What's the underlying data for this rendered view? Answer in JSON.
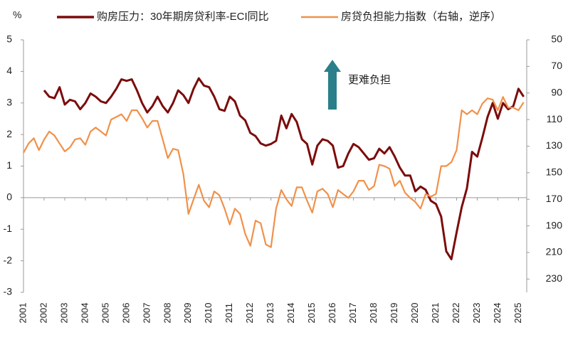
{
  "chart_data": {
    "type": "line",
    "y_unit": "%",
    "annotation": "更难负担",
    "xlim": [
      2001,
      2025.4
    ],
    "xticks": [
      2001,
      2002,
      2003,
      2004,
      2005,
      2006,
      2007,
      2008,
      2009,
      2010,
      2011,
      2012,
      2013,
      2014,
      2015,
      2016,
      2017,
      2018,
      2019,
      2020,
      2021,
      2022,
      2023,
      2024,
      2025
    ],
    "ylim": [
      -3,
      5
    ],
    "yticks": [
      -3,
      -2,
      -1,
      0,
      1,
      2,
      3,
      4,
      5
    ],
    "y2lim": [
      240,
      50
    ],
    "y2ticks": [
      50,
      70,
      90,
      110,
      130,
      150,
      170,
      190,
      210,
      230
    ],
    "series": [
      {
        "name": "购房压力：30年期房贷利率-ECI同比",
        "color": "#7b0c0c",
        "x": [
          2002,
          2002.25,
          2002.5,
          2002.75,
          2003,
          2003.25,
          2003.5,
          2003.75,
          2004,
          2004.25,
          2004.5,
          2004.75,
          2005,
          2005.25,
          2005.5,
          2005.75,
          2006,
          2006.25,
          2006.5,
          2006.75,
          2007,
          2007.25,
          2007.5,
          2007.75,
          2008,
          2008.25,
          2008.5,
          2008.75,
          2009,
          2009.25,
          2009.5,
          2009.75,
          2010,
          2010.25,
          2010.5,
          2010.75,
          2011,
          2011.25,
          2011.5,
          2011.75,
          2012,
          2012.25,
          2012.5,
          2012.75,
          2013,
          2013.25,
          2013.5,
          2013.75,
          2014,
          2014.25,
          2014.5,
          2014.75,
          2015,
          2015.25,
          2015.5,
          2015.75,
          2016,
          2016.25,
          2016.5,
          2016.75,
          2017,
          2017.25,
          2017.5,
          2017.75,
          2018,
          2018.25,
          2018.5,
          2018.75,
          2019,
          2019.25,
          2019.5,
          2019.75,
          2020,
          2020.25,
          2020.5,
          2020.75,
          2021,
          2021.25,
          2021.5,
          2021.75,
          2022,
          2022.25,
          2022.5,
          2022.75,
          2023,
          2023.25,
          2023.5,
          2023.75,
          2024,
          2024.25,
          2024.5,
          2024.75,
          2025,
          2025.25
        ],
        "values": [
          3.4,
          3.2,
          3.15,
          3.5,
          2.95,
          3.1,
          3.05,
          2.8,
          3.0,
          3.3,
          3.2,
          3.05,
          3.0,
          3.2,
          3.45,
          3.75,
          3.7,
          3.75,
          3.4,
          3.0,
          2.7,
          2.9,
          3.2,
          2.9,
          2.7,
          3.0,
          3.4,
          3.25,
          3.0,
          3.45,
          3.78,
          3.55,
          3.5,
          3.2,
          2.8,
          2.75,
          3.2,
          3.05,
          2.6,
          2.45,
          2.05,
          1.95,
          1.72,
          1.65,
          1.7,
          1.8,
          2.6,
          2.2,
          2.65,
          2.4,
          1.85,
          1.7,
          1.05,
          1.65,
          1.85,
          1.8,
          1.65,
          0.95,
          1.0,
          1.4,
          1.7,
          1.6,
          1.4,
          1.2,
          1.25,
          1.55,
          1.4,
          1.6,
          1.3,
          0.95,
          0.7,
          0.7,
          0.2,
          0.35,
          0.25,
          -0.1,
          -0.2,
          -0.6,
          -1.7,
          -1.95,
          -1.1,
          -0.3,
          0.3,
          1.45,
          1.3,
          1.9,
          2.55,
          3.0,
          2.5,
          3.0,
          2.8,
          2.9,
          3.45,
          3.2
        ]
      },
      {
        "name": "房贷负担能力指数（右轴，逆序）",
        "color": "#f0914a",
        "axis": "y2",
        "x": [
          2001,
          2001.25,
          2001.5,
          2001.75,
          2002,
          2002.25,
          2002.5,
          2002.75,
          2003,
          2003.25,
          2003.5,
          2003.75,
          2004,
          2004.25,
          2004.5,
          2004.75,
          2005,
          2005.25,
          2005.5,
          2005.75,
          2006,
          2006.25,
          2006.5,
          2006.75,
          2007,
          2007.25,
          2007.5,
          2007.75,
          2008,
          2008.25,
          2008.5,
          2008.75,
          2009,
          2009.25,
          2009.5,
          2009.75,
          2010,
          2010.25,
          2010.5,
          2010.75,
          2011,
          2011.25,
          2011.5,
          2011.75,
          2012,
          2012.25,
          2012.5,
          2012.75,
          2013,
          2013.25,
          2013.5,
          2013.75,
          2014,
          2014.25,
          2014.5,
          2014.75,
          2015,
          2015.25,
          2015.5,
          2015.75,
          2016,
          2016.25,
          2016.5,
          2016.75,
          2017,
          2017.25,
          2017.5,
          2017.75,
          2018,
          2018.25,
          2018.5,
          2018.75,
          2019,
          2019.25,
          2019.5,
          2019.75,
          2020,
          2020.25,
          2020.5,
          2020.75,
          2021,
          2021.25,
          2021.5,
          2021.75,
          2022,
          2022.25,
          2022.5,
          2022.75,
          2023,
          2023.25,
          2023.5,
          2023.75,
          2024,
          2024.25,
          2024.5,
          2024.75,
          2025,
          2025.25
        ],
        "values": [
          135,
          128,
          124,
          133,
          125,
          119,
          122,
          128,
          134,
          131,
          125,
          124,
          129,
          119,
          116,
          119,
          122,
          110,
          108,
          106,
          111,
          103,
          103,
          109,
          116,
          111,
          111,
          125,
          139,
          132,
          133,
          151,
          181,
          170,
          159,
          171,
          176,
          164,
          167,
          177,
          189,
          177,
          181,
          196,
          205,
          186,
          188,
          204,
          206,
          177,
          163,
          170,
          175,
          161,
          161,
          171,
          180,
          164,
          162,
          166,
          176,
          163,
          166,
          169,
          164,
          156,
          156,
          163,
          160,
          144,
          145,
          147,
          160,
          156,
          165,
          169,
          172,
          177,
          166,
          168,
          166,
          145,
          145,
          142,
          133,
          103,
          106,
          103,
          106,
          98,
          94,
          95,
          103,
          93,
          101,
          101,
          103,
          97
        ]
      }
    ]
  }
}
